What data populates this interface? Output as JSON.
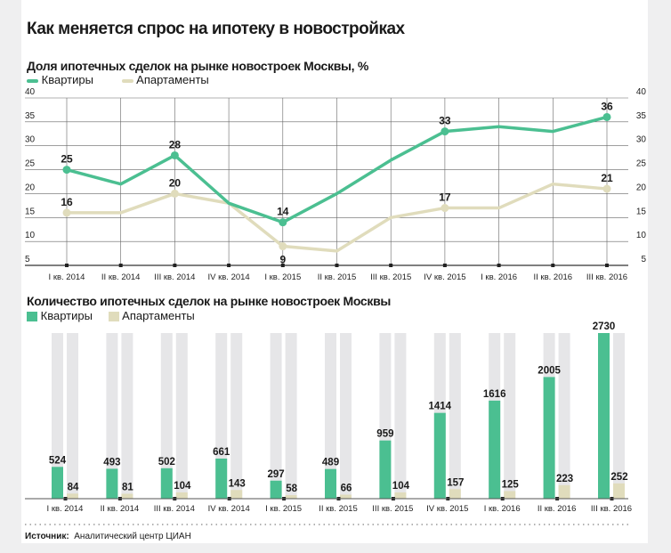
{
  "title": "Как меняется спрос на ипотеку в новостройках",
  "colors": {
    "kvartiry": "#4bbf91",
    "apartamenty": "#e0dcbc",
    "bar_background": "#e6e6e8",
    "grid": "#555555"
  },
  "chart_data": [
    {
      "type": "line",
      "title": "Доля ипотечных сделок на рынке новостроек Москвы, %",
      "categories": [
        "I кв. 2014",
        "II кв. 2014",
        "III кв. 2014",
        "IV кв. 2014",
        "I кв. 2015",
        "II кв. 2015",
        "III кв. 2015",
        "IV кв. 2015",
        "I кв. 2016",
        "II кв. 2016",
        "III кв. 2016"
      ],
      "ylim": [
        5,
        40
      ],
      "yticks": [
        5,
        10,
        15,
        20,
        25,
        30,
        35,
        40
      ],
      "grid": true,
      "legend": "top-left",
      "series": [
        {
          "name": "Квартиры",
          "values": [
            25,
            22,
            28,
            18,
            14,
            20,
            27,
            33,
            34,
            33,
            36
          ],
          "labeled": [
            0,
            2,
            4,
            7,
            10
          ]
        },
        {
          "name": "Апартаменты",
          "values": [
            16,
            16,
            20,
            18,
            9,
            8,
            15,
            17,
            17,
            22,
            21
          ],
          "labeled": [
            0,
            2,
            4,
            7,
            10
          ]
        }
      ]
    },
    {
      "type": "bar",
      "title": "Количество ипотечных сделок на рынке новостроек Москвы",
      "categories": [
        "I кв. 2014",
        "II кв. 2014",
        "III кв. 2014",
        "IV кв. 2014",
        "I кв. 2015",
        "II кв. 2015",
        "III кв. 2015",
        "IV кв. 2015",
        "I кв. 2016",
        "II кв. 2016",
        "III кв. 2016"
      ],
      "ylim": [
        0,
        2730
      ],
      "legend": "top-left",
      "series": [
        {
          "name": "Квартиры",
          "values": [
            524,
            493,
            502,
            661,
            297,
            489,
            959,
            1414,
            1616,
            2005,
            2730
          ]
        },
        {
          "name": "Апартаменты",
          "values": [
            84,
            81,
            104,
            143,
            58,
            66,
            104,
            157,
            125,
            223,
            252
          ]
        }
      ]
    }
  ],
  "source": {
    "label": "Источник:",
    "text": "Аналитический центр ЦИАН"
  }
}
